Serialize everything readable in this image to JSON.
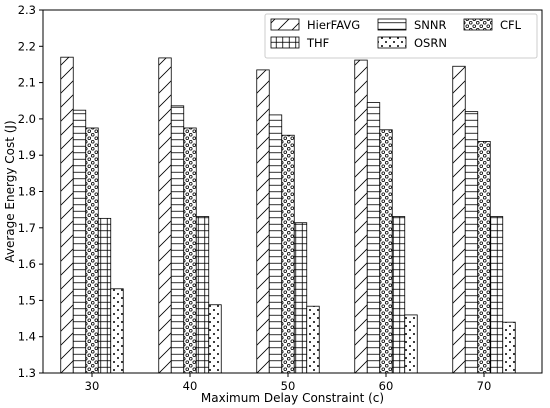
{
  "chart_data": {
    "type": "bar",
    "title": "",
    "xlabel": "Maximum Delay Constraint (c)",
    "ylabel": "Average Energy Cost (J)",
    "categories": [
      "30",
      "40",
      "50",
      "60",
      "70"
    ],
    "ylim": [
      1.3,
      2.3
    ],
    "yticks": [
      "1.3",
      "1.4",
      "1.5",
      "1.6",
      "1.7",
      "1.8",
      "1.9",
      "2.0",
      "2.1",
      "2.2",
      "2.3"
    ],
    "grid": false,
    "legend_position": "top-right",
    "series": [
      {
        "name": "HierFAVG",
        "pattern": "diagonal",
        "values": [
          2.17,
          2.168,
          2.135,
          2.162,
          2.145
        ]
      },
      {
        "name": "SNNR",
        "pattern": "horizontal",
        "values": [
          2.024,
          2.036,
          2.011,
          2.045,
          2.02
        ]
      },
      {
        "name": "CFL",
        "pattern": "circles",
        "values": [
          1.975,
          1.975,
          1.955,
          1.97,
          1.938
        ]
      },
      {
        "name": "THF",
        "pattern": "grid",
        "values": [
          1.726,
          1.731,
          1.714,
          1.731,
          1.731
        ]
      },
      {
        "name": "OSRN",
        "pattern": "dots",
        "values": [
          1.532,
          1.488,
          1.484,
          1.46,
          1.44
        ]
      }
    ]
  }
}
